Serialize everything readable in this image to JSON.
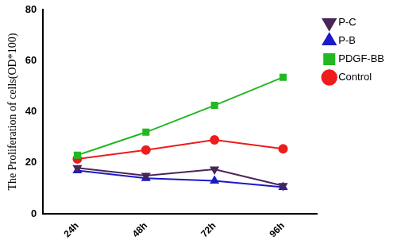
{
  "chart_data": {
    "type": "line",
    "y_label": "The Proliferation of cells(OD*100)",
    "categories": [
      "24h",
      "48h",
      "72h",
      "96h"
    ],
    "series": [
      {
        "name": "P-C",
        "color": "#4a2558",
        "marker": "triangle_down",
        "values": [
          18,
          15,
          17.5,
          11
        ]
      },
      {
        "name": "P-B",
        "color": "#1a1ac8",
        "marker": "triangle",
        "values": [
          17,
          14,
          13,
          10.5
        ]
      },
      {
        "name": "PDGF-BB",
        "color": "#22b822",
        "marker": "square",
        "values": [
          23,
          32,
          42.5,
          53.5
        ]
      },
      {
        "name": "Control",
        "color": "#ee1c1c",
        "marker": "circle",
        "values": [
          21.5,
          25,
          29,
          25.5
        ]
      }
    ],
    "ylim": [
      0,
      80
    ],
    "yticks": [
      0,
      20,
      40,
      60,
      80
    ],
    "grid": false,
    "legend": "right"
  }
}
